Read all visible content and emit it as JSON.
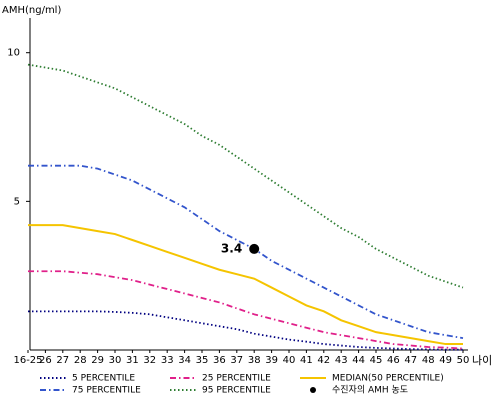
{
  "chart_data": {
    "type": "line",
    "y_label": "AMH(ng/ml)",
    "x_label": "나이",
    "categories": [
      "16-25",
      "26",
      "27",
      "28",
      "29",
      "30",
      "31",
      "32",
      "33",
      "34",
      "35",
      "36",
      "37",
      "38",
      "39",
      "40",
      "41",
      "42",
      "43",
      "44",
      "45",
      "46",
      "47",
      "48",
      "49",
      "50"
    ],
    "ylim": [
      0,
      11.1
    ],
    "yticks": [
      5,
      10
    ],
    "series": [
      {
        "name": "5 PERCENTILE",
        "color": "#000080",
        "dash": "dot",
        "values": [
          1.3,
          1.3,
          1.3,
          1.3,
          1.3,
          1.28,
          1.25,
          1.2,
          1.1,
          1.0,
          0.9,
          0.8,
          0.7,
          0.55,
          0.45,
          0.35,
          0.28,
          0.2,
          0.15,
          0.1,
          0.07,
          0.05,
          0.03,
          0.02,
          0.01,
          0.01
        ]
      },
      {
        "name": "25 PERCENTILE",
        "color": "#e0208a",
        "dash": "dashdot",
        "values": [
          2.65,
          2.65,
          2.65,
          2.6,
          2.55,
          2.45,
          2.35,
          2.2,
          2.05,
          1.9,
          1.75,
          1.6,
          1.4,
          1.2,
          1.05,
          0.9,
          0.75,
          0.6,
          0.5,
          0.4,
          0.3,
          0.2,
          0.15,
          0.1,
          0.08,
          0.05
        ]
      },
      {
        "name": "MEDIAN(50 PERCENTILE)",
        "color": "#f5c400",
        "dash": "solid",
        "values": [
          4.2,
          4.2,
          4.2,
          4.1,
          4.0,
          3.9,
          3.7,
          3.5,
          3.3,
          3.1,
          2.9,
          2.7,
          2.55,
          2.4,
          2.1,
          1.8,
          1.5,
          1.3,
          1.0,
          0.8,
          0.6,
          0.5,
          0.4,
          0.3,
          0.2,
          0.2
        ]
      },
      {
        "name": "75 PERCENTILE",
        "color": "#3355cc",
        "dash": "dashdot",
        "values": [
          6.2,
          6.2,
          6.2,
          6.2,
          6.1,
          5.9,
          5.7,
          5.4,
          5.1,
          4.8,
          4.4,
          4.0,
          3.7,
          3.4,
          3.0,
          2.7,
          2.4,
          2.1,
          1.8,
          1.5,
          1.2,
          1.0,
          0.8,
          0.6,
          0.5,
          0.4
        ]
      },
      {
        "name": "95 PERCENTILE",
        "color": "#2e7d32",
        "dash": "dot",
        "values": [
          9.6,
          9.5,
          9.4,
          9.2,
          9.0,
          8.8,
          8.5,
          8.2,
          7.9,
          7.6,
          7.2,
          6.9,
          6.5,
          6.1,
          5.7,
          5.3,
          4.9,
          4.5,
          4.1,
          3.8,
          3.4,
          3.1,
          2.8,
          2.5,
          2.3,
          2.1
        ]
      }
    ],
    "point": {
      "name": "수진자의 AMH 농도",
      "x": "38",
      "y": 3.4,
      "color": "#000000"
    }
  }
}
